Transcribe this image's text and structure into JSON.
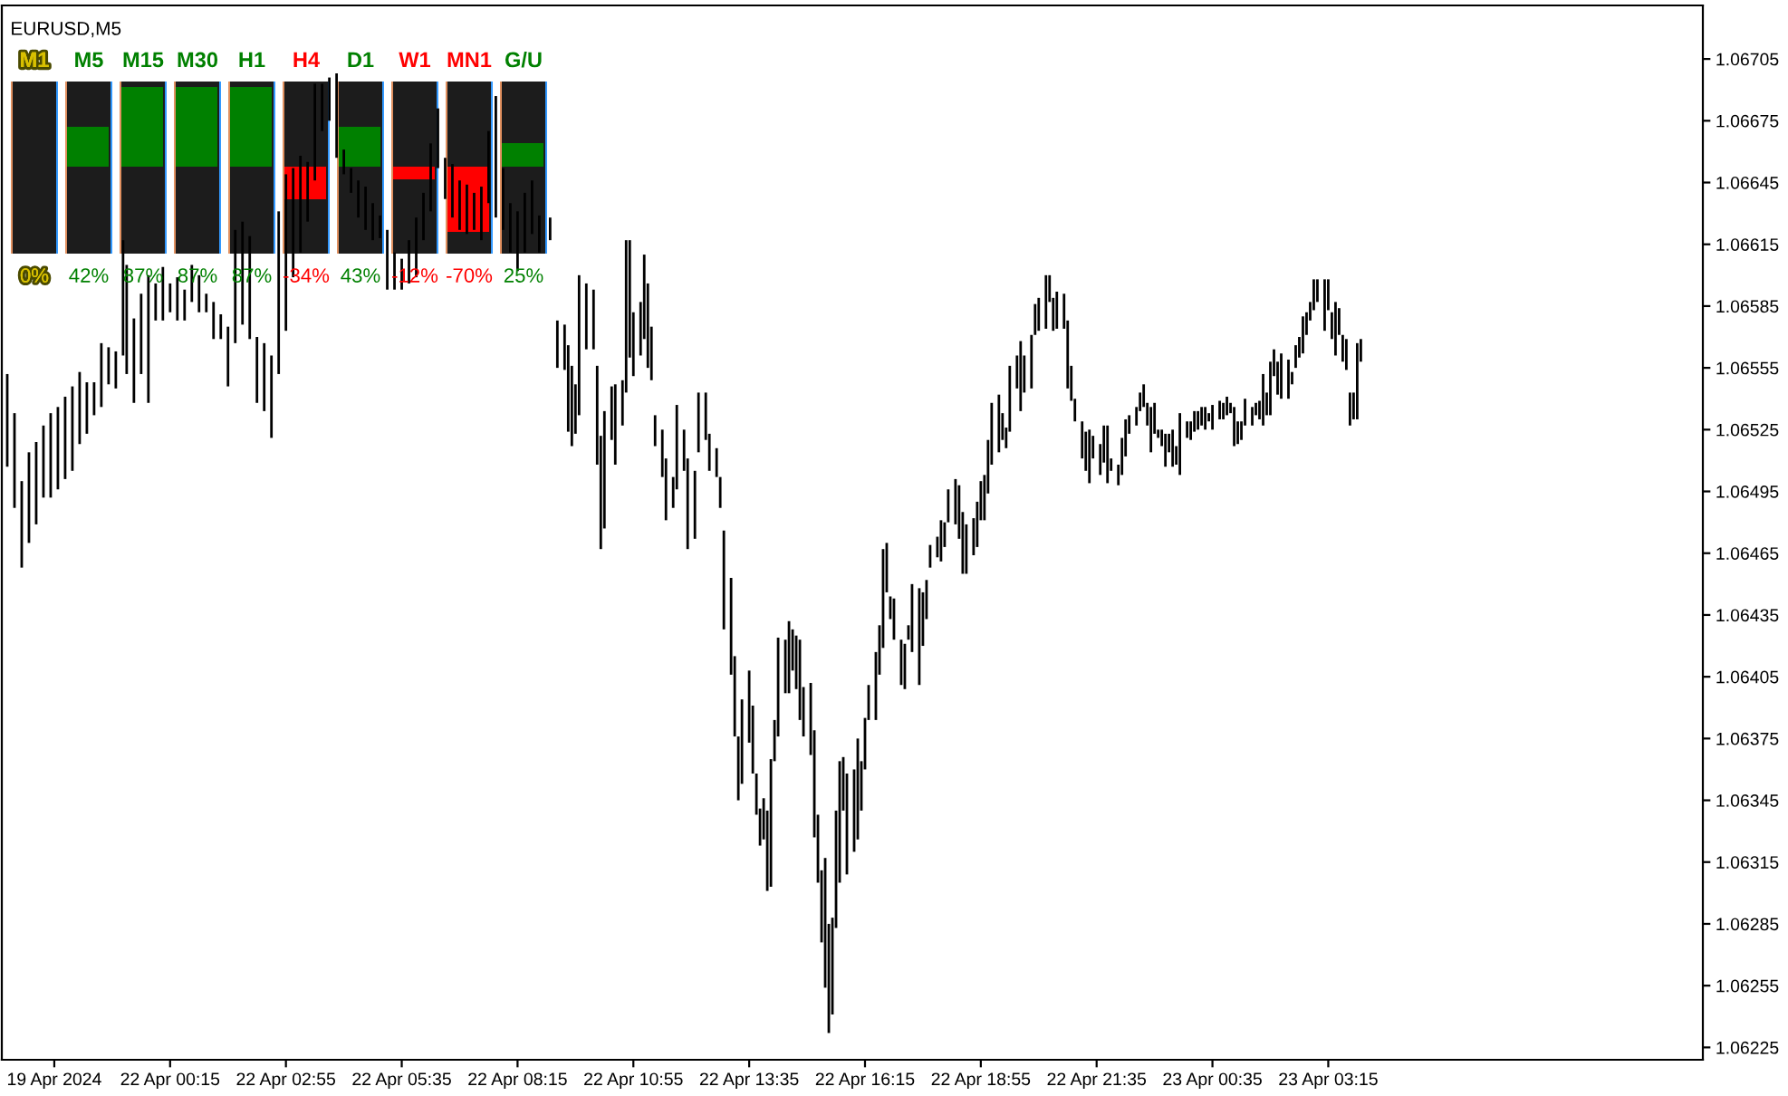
{
  "chart_data": {
    "type": "bar",
    "title": "EURUSD,M5",
    "color": "#000000",
    "categories": [
      null,
      null,
      null,
      null,
      null,
      null,
      null,
      null,
      null,
      null,
      null,
      null,
      null,
      null,
      "19 Apr 2024",
      null,
      null,
      null,
      null,
      null,
      null,
      null,
      null,
      null,
      null,
      null,
      null,
      null,
      null,
      null,
      null,
      null,
      null,
      null,
      null,
      null,
      null,
      null,
      null,
      null,
      null,
      null,
      null,
      null,
      null,
      null,
      "22 Apr 00:15",
      null,
      null,
      null,
      null,
      null,
      null,
      null,
      null,
      null,
      null,
      null,
      null,
      null,
      null,
      null,
      null,
      null,
      null,
      null,
      null,
      null,
      null,
      null,
      null,
      null,
      null,
      null,
      null,
      null,
      null,
      null,
      "22 Apr 02:55",
      null,
      null,
      null,
      null,
      null,
      null,
      null,
      null,
      null,
      null,
      null,
      null,
      null,
      null,
      null,
      null,
      null,
      null,
      null,
      null,
      null,
      null,
      null,
      null,
      null,
      null,
      null,
      null,
      null,
      null,
      null,
      "22 Apr 05:35",
      null,
      null,
      null,
      null,
      null,
      null,
      null,
      null,
      null,
      null,
      null,
      null,
      null,
      null,
      null,
      null,
      null,
      null,
      null,
      null,
      null,
      null,
      null,
      null,
      null,
      null,
      null,
      null,
      null,
      null,
      null,
      "22 Apr 08:15",
      null,
      null,
      null,
      null,
      null,
      null,
      null,
      null,
      null,
      null,
      null,
      null,
      null,
      null,
      null,
      null,
      null,
      null,
      null,
      null,
      null,
      null,
      null,
      null,
      null,
      null,
      null,
      null,
      null,
      null,
      null,
      "22 Apr 10:55",
      null,
      null,
      null,
      null,
      null,
      null,
      null,
      null,
      null,
      null,
      null,
      null,
      null,
      null,
      null,
      null,
      null,
      null,
      null,
      null,
      null,
      null,
      null,
      null,
      null,
      null,
      null,
      null,
      null,
      null,
      null,
      "22 Apr 13:35",
      null,
      null,
      null,
      null,
      null,
      null,
      null,
      null,
      null,
      null,
      null,
      null,
      null,
      null,
      null,
      null,
      null,
      null,
      null,
      null,
      null,
      null,
      null,
      null,
      null,
      null,
      null,
      null,
      null,
      null,
      null,
      "22 Apr 16:15",
      null,
      null,
      null,
      null,
      null,
      null,
      null,
      null,
      null,
      null,
      null,
      null,
      null,
      null,
      null,
      null,
      null,
      null,
      null,
      null,
      null,
      null,
      null,
      null,
      null,
      null,
      null,
      null,
      null,
      null,
      null,
      "22 Apr 18:55",
      null,
      null,
      null,
      null,
      null,
      null,
      null,
      null,
      null,
      null,
      null,
      null,
      null,
      null,
      null,
      null,
      null,
      null,
      null,
      null,
      null,
      null,
      null,
      null,
      null,
      null,
      null,
      null,
      null,
      null,
      null,
      "22 Apr 21:35",
      null,
      null,
      null,
      null,
      null,
      null,
      null,
      null,
      null,
      null,
      null,
      null,
      null,
      null,
      null,
      null,
      null,
      null,
      null,
      null,
      null,
      null,
      null,
      null,
      null,
      null,
      null,
      null,
      null,
      null,
      null,
      "23 Apr 00:35",
      null,
      null,
      null,
      null,
      null,
      null,
      null,
      null,
      null,
      null,
      null,
      null,
      null,
      null,
      null,
      null,
      null,
      null,
      null,
      null,
      null,
      null,
      null,
      null,
      null,
      null,
      null,
      null,
      null,
      null,
      null,
      "23 Apr 03:15",
      null,
      null,
      null,
      null,
      null,
      null,
      null,
      null,
      null,
      null,
      null,
      null,
      null,
      null,
      null,
      null,
      null,
      null,
      null,
      null,
      null,
      null,
      null,
      null,
      null,
      null,
      null,
      null,
      null,
      null,
      null,
      null,
      null,
      null,
      null,
      null,
      null,
      null,
      null,
      null,
      null,
      null,
      null,
      null,
      null,
      null,
      null,
      null,
      null,
      null,
      null,
      null,
      null,
      null,
      null,
      null,
      null,
      null,
      null,
      null,
      null,
      null,
      null,
      null,
      null,
      null,
      null,
      null,
      null,
      null,
      null,
      null,
      null,
      null,
      null,
      null,
      null,
      null,
      null,
      null,
      null,
      null,
      null,
      null,
      null,
      null,
      null,
      null,
      null,
      null,
      null,
      null,
      null,
      null,
      null,
      null,
      null,
      null,
      null,
      null,
      null,
      null,
      null
    ],
    "base": [
      null,
      1.06507,
      null,
      1.06487,
      null,
      1.06458,
      null,
      1.0647,
      null,
      1.06479,
      null,
      1.06492,
      null,
      1.06492,
      null,
      1.06496,
      null,
      1.06501,
      null,
      1.06505,
      null,
      1.06518,
      null,
      1.06523,
      null,
      1.06532,
      null,
      1.06536,
      null,
      1.06547,
      null,
      1.06545,
      null,
      1.06561,
      1.06552,
      null,
      1.06538,
      null,
      1.06552,
      null,
      1.06538,
      null,
      1.06578,
      null,
      1.06578,
      null,
      1.06582,
      null,
      1.06578,
      null,
      1.06578,
      null,
      1.06587,
      null,
      1.06582,
      null,
      1.06582,
      null,
      1.06569,
      null,
      1.06569,
      null,
      1.06546,
      null,
      1.06567,
      null,
      1.06576,
      null,
      1.06569,
      null,
      1.06538,
      null,
      1.06534,
      null,
      1.06521,
      null,
      1.06552,
      null,
      1.06573,
      null,
      1.06599,
      null,
      1.06611,
      null,
      1.06626,
      null,
      1.06646,
      null,
      1.0667,
      null,
      1.06675,
      null,
      1.06657,
      null,
      1.06649,
      null,
      1.0664,
      null,
      1.06628,
      null,
      1.06622,
      null,
      1.06617,
      null,
      1.06618,
      null,
      1.06593,
      null,
      1.06593,
      null,
      1.06593,
      null,
      1.06596,
      null,
      1.06599,
      null,
      1.06617,
      null,
      1.06631,
      null,
      1.06652,
      null,
      1.06637,
      null,
      1.06628,
      null,
      1.06622,
      null,
      1.0662,
      null,
      1.06622,
      null,
      1.06617,
      null,
      1.06635,
      null,
      1.06628,
      null,
      1.06622,
      null,
      1.06611,
      null,
      1.06602,
      null,
      1.06611,
      null,
      1.0662,
      null,
      1.06611,
      null,
      null,
      1.06617,
      null,
      1.06555,
      null,
      1.06554,
      1.06524,
      1.06517,
      1.06523,
      1.06532,
      null,
      1.06564,
      null,
      1.06564,
      1.06508,
      1.06467,
      1.06477,
      null,
      1.0652,
      1.06508,
      null,
      1.06527,
      1.06543,
      1.0656,
      1.06551,
      null,
      1.06561,
      1.06569,
      1.06555,
      1.06549,
      1.06517,
      null,
      1.06502,
      1.06481,
      null,
      1.06487,
      1.06496,
      null,
      1.06505,
      1.06467,
      null,
      1.06472,
      1.06514,
      null,
      1.0652,
      1.06505,
      null,
      1.06502,
      1.06487,
      1.06428,
      null,
      1.06406,
      1.06376,
      1.06345,
      1.06353,
      null,
      1.06373,
      1.06358,
      1.06338,
      1.06323,
      1.06326,
      1.06301,
      1.06303,
      1.06364,
      1.06376,
      null,
      1.06397,
      1.06397,
      1.06408,
      1.06399,
      1.06384,
      1.06376,
      null,
      1.06367,
      1.06327,
      1.06305,
      1.06276,
      1.06254,
      1.06232,
      1.06241,
      1.06283,
      1.06305,
      1.0634,
      1.06309,
      null,
      1.0632,
      1.06326,
      1.0634,
      1.0636,
      1.06384,
      null,
      1.06384,
      1.06406,
      1.06419,
      1.06446,
      1.06433,
      1.06423,
      null,
      1.06401,
      1.06399,
      1.06423,
      1.06417,
      null,
      1.06401,
      1.0642,
      1.06433,
      1.06458,
      null,
      1.06463,
      1.06461,
      1.06468,
      1.0648,
      null,
      1.06479,
      1.06472,
      1.06455,
      1.06455,
      null,
      1.06464,
      1.06468,
      1.06481,
      1.06481,
      1.06494,
      1.06508,
      null,
      1.06514,
      1.0652,
      1.06516,
      1.06524,
      null,
      1.06545,
      1.06534,
      1.06543,
      null,
      1.06545,
      1.06571,
      1.06573,
      null,
      1.06574,
      1.06587,
      1.06573,
      1.06574,
      null,
      1.06574,
      1.06545,
      1.06539,
      1.06529,
      null,
      1.06511,
      1.06505,
      1.06499,
      1.06511,
      null,
      1.06503,
      1.06509,
      1.06499,
      1.06505,
      null,
      1.06498,
      1.06503,
      1.06512,
      1.06523,
      null,
      1.06527,
      1.06534,
      1.06536,
      1.06527,
      1.06514,
      1.06523,
      1.06521,
      1.06517,
      1.06507,
      1.06514,
      1.06507,
      1.06508,
      1.06503,
      null,
      1.06521,
      1.0652,
      1.06524,
      1.06525,
      1.06527,
      1.06525,
      1.06529,
      1.06525,
      null,
      1.0653,
      1.0653,
      1.06532,
      1.06533,
      1.06517,
      1.06518,
      1.0652,
      1.06527,
      null,
      1.06527,
      1.06532,
      1.0653,
      1.06527,
      1.06532,
      1.06532,
      1.06551,
      1.06542,
      1.0654,
      null,
      1.0654,
      1.06547,
      1.06555,
      1.0656,
      1.06562,
      1.06571,
      1.06578,
      1.06583,
      1.06587,
      null,
      1.06573,
      1.06583,
      1.06569,
      1.06561,
      1.06571,
      1.06558,
      1.06554,
      1.06527,
      1.0653,
      1.0653,
      1.06558,
      null,
      null,
      null,
      null,
      null,
      null,
      null,
      null,
      null,
      null,
      null,
      null,
      null,
      null,
      null,
      null,
      null,
      null,
      null,
      null,
      null,
      null,
      null,
      null,
      null,
      null,
      null,
      null,
      null,
      null,
      null,
      null,
      null,
      null,
      null,
      null,
      null,
      null,
      null,
      null,
      null,
      null,
      null,
      null,
      null,
      null,
      null,
      null,
      null,
      null,
      null,
      null,
      null,
      null,
      null,
      null,
      null,
      null,
      null,
      null,
      null,
      null,
      null,
      null,
      null,
      null,
      null,
      null,
      null,
      null,
      null,
      null,
      null,
      null,
      null,
      null,
      null,
      null,
      null,
      null,
      null,
      null,
      null,
      null,
      null,
      null,
      null,
      null,
      null,
      null,
      null,
      null,
      null,
      null
    ],
    "values": [
      null,
      0.00045,
      null,
      0.00046,
      null,
      0.00042,
      null,
      0.00044,
      null,
      0.0004,
      null,
      0.00035,
      null,
      0.00041,
      null,
      0.0004,
      null,
      0.0004,
      null,
      0.00041,
      null,
      0.00035,
      null,
      0.00025,
      null,
      0.00016,
      null,
      0.00031,
      null,
      0.00018,
      null,
      0.00018,
      null,
      0.00056,
      0.00053,
      null,
      0.00041,
      null,
      0.00039,
      null,
      0.00062,
      null,
      0.00018,
      null,
      0.00026,
      null,
      0.00014,
      null,
      0.00021,
      null,
      0.00015,
      null,
      0.00018,
      null,
      0.00018,
      null,
      9e-05,
      null,
      0.00018,
      null,
      0.00012,
      null,
      0.00029,
      null,
      0.00055,
      null,
      0.0005,
      null,
      0.0005,
      null,
      0.00032,
      null,
      0.00033,
      null,
      0.0004,
      null,
      0.00079,
      null,
      0.00076,
      null,
      0.00053,
      null,
      0.00047,
      null,
      0.00029,
      null,
      0.00047,
      null,
      0.00023,
      null,
      0.00021,
      null,
      0.00041,
      null,
      0.00012,
      null,
      0.00012,
      null,
      0.00018,
      null,
      0.00021,
      null,
      0.00018,
      null,
      0.00011,
      null,
      0.00029,
      null,
      0.00018,
      null,
      0.00015,
      null,
      0.00021,
      null,
      0.00029,
      null,
      0.00023,
      null,
      0.00033,
      null,
      0.00029,
      null,
      0.0002,
      null,
      0.00026,
      null,
      0.00024,
      null,
      0.00024,
      null,
      0.00018,
      null,
      0.00026,
      null,
      0.00035,
      null,
      0.00059,
      null,
      0.0003,
      null,
      0.00024,
      null,
      0.00029,
      null,
      0.00029,
      null,
      0.00026,
      null,
      0.00018,
      null,
      null,
      0.00011,
      null,
      0.00023,
      null,
      0.00022,
      0.00042,
      0.00039,
      0.00024,
      0.00068,
      null,
      0.00032,
      null,
      0.00029,
      0.00048,
      0.00055,
      0.00057,
      null,
      0.00026,
      0.00039,
      null,
      0.00022,
      0.00074,
      0.00057,
      0.00031,
      null,
      0.00026,
      0.00041,
      0.00041,
      0.00026,
      0.00015,
      null,
      0.00023,
      0.0003,
      null,
      0.00015,
      0.00041,
      null,
      0.0002,
      0.00044,
      null,
      0.00033,
      0.00029,
      null,
      0.00023,
      0.00018,
      null,
      0.00014,
      0.00015,
      0.00048,
      null,
      0.00047,
      0.00039,
      0.00031,
      0.00041,
      null,
      0.00035,
      0.00033,
      0.0002,
      0.00018,
      0.0002,
      0.00039,
      0.00062,
      0.0002,
      0.00048,
      null,
      0.00026,
      0.00035,
      0.0002,
      0.00026,
      0.00039,
      0.00024,
      null,
      0.00035,
      0.00052,
      0.00033,
      0.00035,
      0.00063,
      0.00053,
      0.00047,
      0.00057,
      0.00059,
      0.00026,
      0.00049,
      null,
      0.0004,
      0.00049,
      0.00024,
      0.00025,
      0.00017,
      null,
      0.00033,
      0.00024,
      0.00048,
      0.00024,
      0.00011,
      0.0002,
      null,
      0.00022,
      0.00022,
      7e-05,
      0.00033,
      null,
      0.00047,
      0.00026,
      0.00019,
      0.00011,
      null,
      0.0001,
      0.0002,
      0.00012,
      0.00016,
      null,
      0.00022,
      0.00026,
      0.0003,
      0.00024,
      null,
      0.00018,
      0.00022,
      0.00019,
      0.00022,
      0.00026,
      0.0003,
      null,
      0.00028,
      0.00013,
      0.0001,
      0.00032,
      null,
      0.00016,
      0.00034,
      0.00018,
      null,
      0.00026,
      0.00015,
      0.00016,
      null,
      0.00026,
      0.00013,
      0.00016,
      0.00018,
      null,
      0.00017,
      0.00033,
      0.00017,
      0.00011,
      null,
      0.00018,
      0.00019,
      0.00026,
      0.00011,
      null,
      0.00015,
      0.00018,
      0.00028,
      6e-05,
      null,
      0.0001,
      0.00018,
      0.00018,
      9e-05,
      null,
      9e-05,
      9e-05,
      0.00011,
      0.00011,
      0.00022,
      0.00015,
      4e-05,
      8e-05,
      0.00016,
      9e-05,
      0.00018,
      9e-05,
      0.0003,
      null,
      8e-05,
      9e-05,
      0.0001,
      9e-05,
      9e-05,
      0.00011,
      4e-05,
      0.00012,
      null,
      9e-05,
      8e-05,
      9e-05,
      5e-05,
      0.00019,
      0.00011,
      9e-05,
      0.00013,
      null,
      9e-05,
      6e-05,
      9e-05,
      0.00025,
      0.00011,
      0.00026,
      0.00013,
      0.00016,
      0.00022,
      null,
      0.00019,
      6e-05,
      0.00011,
      0.0001,
      0.00018,
      0.00011,
      9e-05,
      0.00015,
      0.00011,
      null,
      0.00025,
      0.00015,
      0.00013,
      0.00026,
      0.00013,
      0.00013,
      0.00015,
      0.00016,
      0.00013,
      0.00037,
      0.00011,
      null,
      null,
      null,
      null,
      null,
      null,
      null,
      null,
      null,
      null,
      null,
      null,
      null,
      null,
      null,
      null,
      null,
      null,
      null,
      null,
      null,
      null,
      null,
      null,
      null,
      null,
      null,
      null,
      null,
      null,
      null,
      null,
      null,
      null,
      null,
      null,
      null,
      null,
      null,
      null,
      null,
      null,
      null,
      null,
      null,
      null,
      null,
      null,
      null,
      null,
      null,
      null,
      null,
      null,
      null,
      null,
      null,
      null,
      null,
      null,
      null,
      null,
      null,
      null,
      null,
      null,
      null,
      null,
      null,
      null,
      null,
      null,
      null,
      null,
      null,
      null,
      null,
      null,
      null,
      null,
      null,
      null,
      null,
      null,
      null,
      null,
      null,
      null,
      null,
      null,
      null,
      null,
      null,
      null
    ],
    "ylim": [
      1.06219,
      1.06731
    ],
    "yticks": [
      1.06225,
      1.06255,
      1.06285,
      1.06315,
      1.06345,
      1.06375,
      1.06405,
      1.06435,
      1.06465,
      1.06495,
      1.06525,
      1.06555,
      1.06585,
      1.06615,
      1.06645,
      1.06675,
      1.06705
    ],
    "annotations": [
      "M1",
      "M5",
      "M15",
      "M30",
      "H1",
      "H4",
      "D1",
      "W1",
      "MN1",
      "G/U",
      "0%",
      "42%",
      "87%",
      "87%",
      "87%",
      "-34%",
      "43%",
      "-12%",
      "-70%",
      "25%"
    ]
  }
}
